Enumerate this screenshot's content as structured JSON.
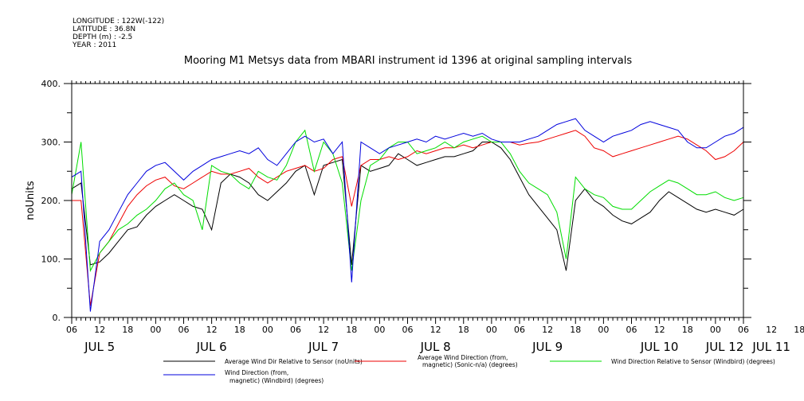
{
  "meta": {
    "longitude": "LONGITUDE : 122W(-122)",
    "latitude": "LATITUDE : 36.8N",
    "depth": "DEPTH (m) : -2.5",
    "year": "YEAR : 2011"
  },
  "chart_data": {
    "type": "line",
    "title": "Mooring M1 Metsys data from MBARI instrument id 1396 at original sampling intervals",
    "xlabel": "",
    "ylabel": "noUnits",
    "ylim": [
      0,
      400
    ],
    "yticks": [
      "0.",
      "100.",
      "200.",
      "300.",
      "400."
    ],
    "xlim_hours": [
      0,
      144
    ],
    "xtick_labels": [
      "06",
      "12",
      "18",
      "00",
      "06",
      "12",
      "18",
      "00",
      "06",
      "12",
      "18",
      "00",
      "06",
      "12",
      "18",
      "00",
      "06",
      "12",
      "18",
      "00",
      "06",
      "12",
      "18",
      "00",
      "06",
      "12",
      "18",
      "00",
      "06"
    ],
    "day_labels": [
      "JUL  5",
      "JUL  6",
      "JUL  7",
      "JUL  8",
      "JUL  9",
      "JUL 10",
      "JUL 11",
      "JUL 12"
    ],
    "grid": false,
    "legend_position": "bottom",
    "series": [
      {
        "name": "Average Wind Dir Relative to Sensor (noUnits)",
        "color": "#000000",
        "x": [
          0,
          2,
          4,
          6,
          8,
          10,
          12,
          14,
          16,
          18,
          20,
          22,
          24,
          26,
          28,
          30,
          32,
          34,
          36,
          38,
          40,
          42,
          44,
          46,
          48,
          50,
          52,
          54,
          56,
          58,
          60,
          62,
          64,
          66,
          68,
          70,
          72,
          74,
          76,
          78,
          80,
          82,
          84,
          86,
          88,
          90,
          92,
          94,
          96,
          98,
          100,
          102,
          104,
          106,
          108,
          110,
          112,
          114,
          116,
          118,
          120,
          122,
          124,
          126,
          128,
          130,
          132,
          134,
          136,
          138,
          140,
          142,
          144
        ],
        "y": [
          220,
          230,
          90,
          95,
          110,
          130,
          150,
          155,
          175,
          190,
          200,
          210,
          200,
          190,
          185,
          150,
          230,
          245,
          240,
          230,
          210,
          200,
          215,
          230,
          250,
          260,
          210,
          260,
          265,
          270,
          90,
          260,
          250,
          255,
          260,
          280,
          270,
          260,
          265,
          270,
          275,
          275,
          280,
          285,
          300,
          300,
          290,
          270,
          240,
          210,
          190,
          170,
          150,
          80,
          200,
          220,
          200,
          190,
          175,
          165,
          160,
          170,
          180,
          200,
          215,
          205,
          195,
          185,
          180,
          185,
          180,
          175,
          185
        ]
      },
      {
        "name": "Average Wind Direction (from, magnetic) (Sonic-n/a) (degrees)",
        "color": "#ee0000",
        "x": [
          0,
          2,
          4,
          6,
          8,
          10,
          12,
          14,
          16,
          18,
          20,
          22,
          24,
          26,
          28,
          30,
          32,
          34,
          36,
          38,
          40,
          42,
          44,
          46,
          48,
          50,
          52,
          54,
          56,
          58,
          60,
          62,
          64,
          66,
          68,
          70,
          72,
          74,
          76,
          78,
          80,
          82,
          84,
          86,
          88,
          90,
          92,
          94,
          96,
          98,
          100,
          102,
          104,
          106,
          108,
          110,
          112,
          114,
          116,
          118,
          120,
          122,
          124,
          126,
          128,
          130,
          132,
          134,
          136,
          138,
          140,
          142,
          144
        ],
        "y": [
          200,
          200,
          20,
          110,
          130,
          160,
          190,
          210,
          225,
          235,
          240,
          225,
          220,
          230,
          240,
          250,
          245,
          245,
          250,
          255,
          240,
          230,
          240,
          250,
          255,
          260,
          250,
          255,
          270,
          275,
          190,
          260,
          270,
          270,
          275,
          270,
          275,
          285,
          280,
          285,
          290,
          290,
          295,
          290,
          295,
          300,
          300,
          300,
          295,
          298,
          300,
          305,
          310,
          315,
          320,
          310,
          290,
          285,
          275,
          280,
          285,
          290,
          295,
          300,
          305,
          310,
          305,
          295,
          285,
          270,
          275,
          285,
          300
        ]
      },
      {
        "name": "Wind Direction Relative to Sensor (Windbird) (degrees)",
        "color": "#00dd00",
        "x": [
          0,
          2,
          4,
          6,
          8,
          10,
          12,
          14,
          16,
          18,
          20,
          22,
          24,
          26,
          28,
          30,
          32,
          34,
          36,
          38,
          40,
          42,
          44,
          46,
          48,
          50,
          52,
          54,
          56,
          58,
          60,
          62,
          64,
          66,
          68,
          70,
          72,
          74,
          76,
          78,
          80,
          82,
          84,
          86,
          88,
          90,
          92,
          94,
          96,
          98,
          100,
          102,
          104,
          106,
          108,
          110,
          112,
          114,
          116,
          118,
          120,
          122,
          124,
          126,
          128,
          130,
          132,
          134,
          136,
          138,
          140,
          142,
          144
        ],
        "y": [
          210,
          300,
          80,
          110,
          130,
          150,
          160,
          175,
          185,
          200,
          220,
          230,
          210,
          200,
          150,
          260,
          250,
          245,
          230,
          220,
          250,
          240,
          235,
          260,
          300,
          320,
          250,
          300,
          280,
          230,
          80,
          200,
          260,
          270,
          290,
          300,
          300,
          280,
          285,
          290,
          300,
          290,
          300,
          305,
          310,
          300,
          300,
          280,
          250,
          230,
          220,
          210,
          180,
          100,
          240,
          220,
          210,
          205,
          190,
          185,
          185,
          200,
          215,
          225,
          235,
          230,
          220,
          210,
          210,
          215,
          205,
          200,
          205
        ]
      },
      {
        "name": "Wind Direction (from, magnetic) (Windbird) (degrees)",
        "color": "#0000dd",
        "x": [
          0,
          2,
          4,
          6,
          8,
          10,
          12,
          14,
          16,
          18,
          20,
          22,
          24,
          26,
          28,
          30,
          32,
          34,
          36,
          38,
          40,
          42,
          44,
          46,
          48,
          50,
          52,
          54,
          56,
          58,
          60,
          62,
          64,
          66,
          68,
          70,
          72,
          74,
          76,
          78,
          80,
          82,
          84,
          86,
          88,
          90,
          92,
          94,
          96,
          98,
          100,
          102,
          104,
          106,
          108,
          110,
          112,
          114,
          116,
          118,
          120,
          122,
          124,
          126,
          128,
          130,
          132,
          134,
          136,
          138,
          140,
          142,
          144
        ],
        "y": [
          240,
          250,
          10,
          130,
          150,
          180,
          210,
          230,
          250,
          260,
          265,
          250,
          235,
          250,
          260,
          270,
          275,
          280,
          285,
          280,
          290,
          270,
          260,
          280,
          300,
          310,
          300,
          305,
          280,
          300,
          60,
          300,
          290,
          280,
          290,
          295,
          300,
          305,
          300,
          310,
          305,
          310,
          315,
          310,
          315,
          305,
          300,
          300,
          300,
          305,
          310,
          320,
          330,
          335,
          340,
          320,
          310,
          300,
          310,
          315,
          320,
          330,
          335,
          330,
          325,
          320,
          300,
          290,
          290,
          300,
          310,
          315,
          325
        ]
      }
    ]
  },
  "legend": {
    "black_label": "Average Wind Dir Relative to Sensor (noUnits)",
    "red_label_1": "Average Wind Direction (from,",
    "red_label_2": "magnetic) (Sonic-n/a) (degrees)",
    "green_label": "Wind Direction Relative to Sensor (Windbird) (degrees)",
    "blue_label_1": "Wind Direction (from,",
    "blue_label_2": "magnetic) (Windbird) (degrees)"
  }
}
